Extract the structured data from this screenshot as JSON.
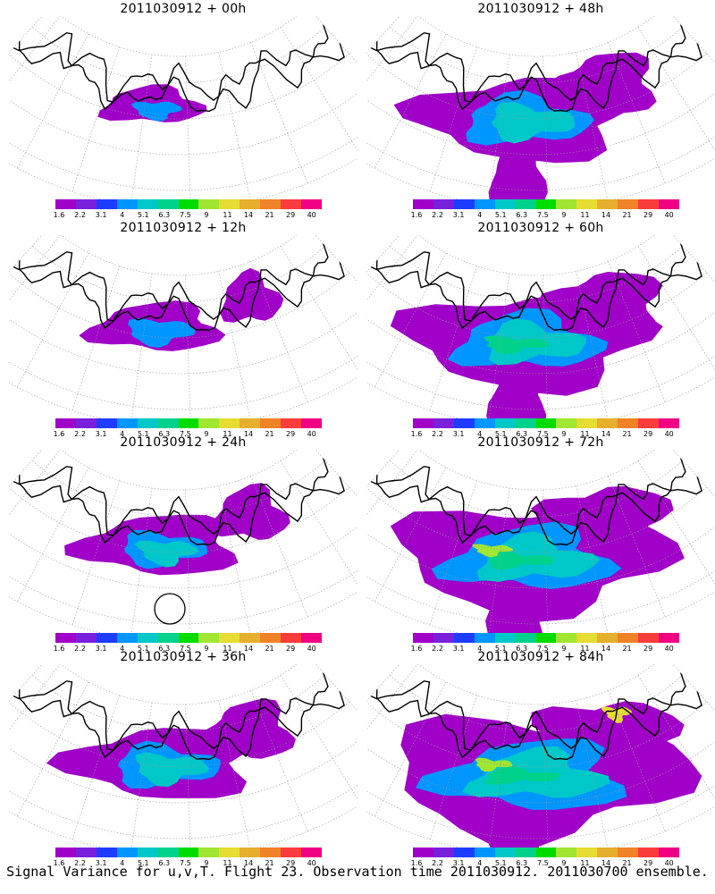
{
  "panels": [
    {
      "title": "2011030912 + 00h",
      "lead": 0
    },
    {
      "title": "2011030912 + 48h",
      "lead": 48
    },
    {
      "title": "2011030912 + 12h",
      "lead": 12
    },
    {
      "title": "2011030912 + 60h",
      "lead": 60
    },
    {
      "title": "2011030912 + 24h",
      "lead": 24
    },
    {
      "title": "2011030912 + 72h",
      "lead": 72
    },
    {
      "title": "2011030912 + 36h",
      "lead": 36
    },
    {
      "title": "2011030912 + 84h",
      "lead": 84
    }
  ],
  "colorbar": {
    "labels": [
      "1.6",
      "2.2",
      "3.1",
      "4",
      "5.1",
      "6.3",
      "7.5",
      "9",
      "11",
      "14",
      "21",
      "29",
      "40"
    ],
    "colors": [
      "#a000c8",
      "#7820dc",
      "#1e3cff",
      "#0096ff",
      "#00c8c8",
      "#00d28c",
      "#00dc00",
      "#a0e632",
      "#e6dc32",
      "#e6af2d",
      "#f08228",
      "#fa3c3c",
      "#f00082"
    ]
  },
  "footer": "Signal Variance for u,v,T. Flight 23. Observation time 2011030912. 2011030700 ensemble."
}
